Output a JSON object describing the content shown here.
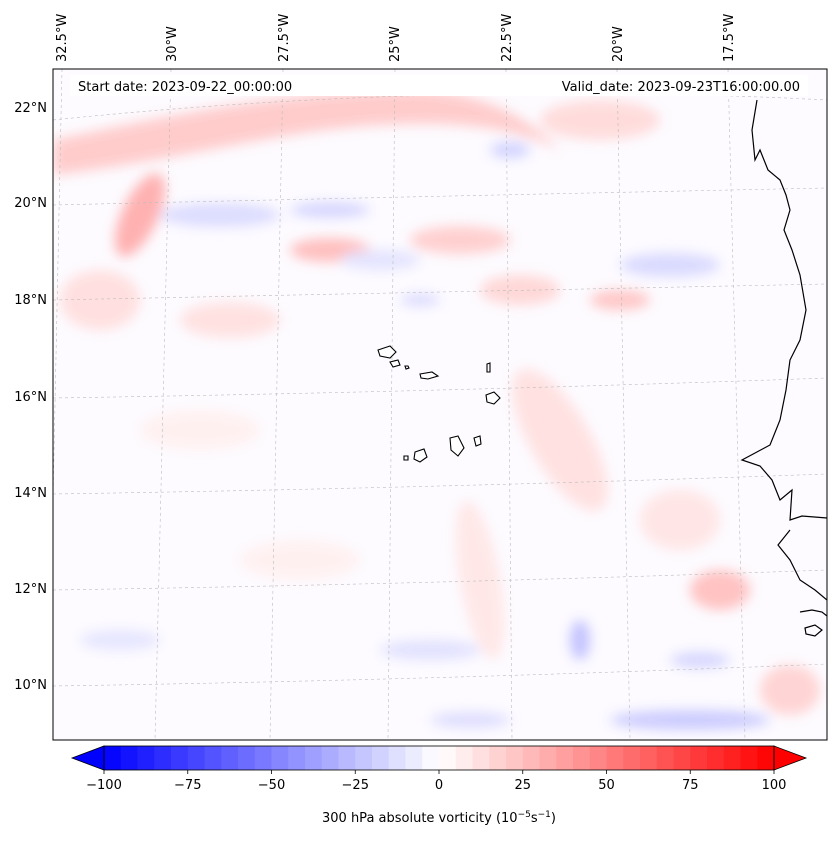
{
  "header": {
    "start_label": "Start date: 2023-09-22_00:00:00",
    "valid_label": "Valid_date: 2023-09-23T16:00:00.00"
  },
  "map": {
    "projection": "lambert-conformal",
    "lon_labels": [
      "32.5°W",
      "30°W",
      "27.5°W",
      "25°W",
      "22.5°W",
      "20°W",
      "17.5°W"
    ],
    "lat_labels": [
      "22°N",
      "20°N",
      "18°N",
      "16°N",
      "14°N",
      "12°N",
      "10°N"
    ],
    "islands": "Cape Verde",
    "coast": "West Africa"
  },
  "colorbar": {
    "ticks": [
      "−100",
      "−75",
      "−50",
      "−25",
      "0",
      "25",
      "50",
      "75",
      "100"
    ],
    "label_main": "300 hPa absolute vorticity (10",
    "label_exp1": "−5",
    "label_mid": "s",
    "label_exp2": "−1",
    "label_end": ")",
    "cmap": "bwr",
    "min": -100,
    "max": 100,
    "extend": "both"
  }
}
